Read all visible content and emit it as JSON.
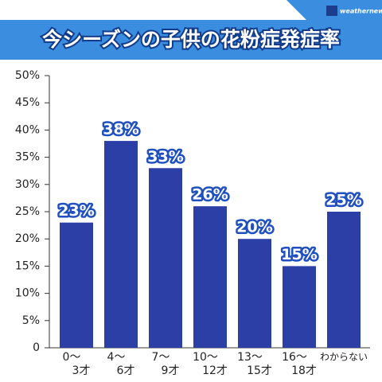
{
  "logo": "weathernews",
  "chart_data": {
    "type": "bar",
    "title": "今シーズンの子供の花粉症発症率",
    "categories": [
      [
        "0〜",
        "3才"
      ],
      [
        "4〜",
        "6才"
      ],
      [
        "7〜",
        "9才"
      ],
      [
        "10〜",
        "12才"
      ],
      [
        "13〜",
        "15才"
      ],
      [
        "16〜",
        "18才"
      ],
      [
        "わからない"
      ]
    ],
    "values": [
      23,
      38,
      33,
      26,
      20,
      15,
      25
    ],
    "value_labels": [
      "23%",
      "38%",
      "33%",
      "26%",
      "20%",
      "15%",
      "25%"
    ],
    "color": "#2b3fa6",
    "ylim": [
      0,
      50
    ],
    "yticks": [
      0,
      {
        "value": 5,
        "label": "5%"
      },
      {
        "value": 10,
        "label": "10%"
      },
      {
        "value": 15,
        "label": "15%"
      },
      {
        "value": 20,
        "label": "20%"
      },
      {
        "value": 25,
        "label": "25%"
      },
      {
        "value": 30,
        "label": "30%"
      },
      {
        "value": 35,
        "label": "35%"
      },
      {
        "value": 40,
        "label": "40%"
      },
      {
        "value": 45,
        "label": "45%"
      },
      {
        "value": 50,
        "label": "50%"
      }
    ]
  }
}
